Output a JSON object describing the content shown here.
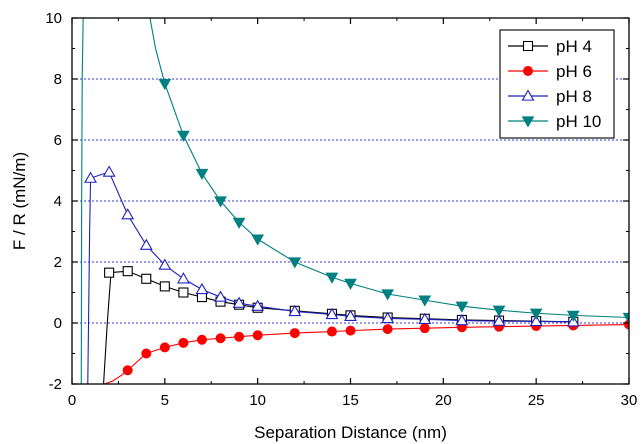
{
  "chart_data": {
    "type": "line",
    "title": "",
    "xlabel": "Separation Distance (nm)",
    "ylabel": "F / R (mN/m)",
    "xlim": [
      0,
      30
    ],
    "ylim": [
      -2,
      10
    ],
    "xticks": [
      0,
      5,
      10,
      15,
      20,
      25,
      30
    ],
    "yticks": [
      -2,
      0,
      2,
      4,
      6,
      8,
      10
    ],
    "grid": "dotted horizontal lines at y = 0, 2, 4, 6, 8",
    "legend_position": "top-right",
    "series": [
      {
        "name": "pH 4",
        "color": "#000000",
        "marker": "open-square",
        "curve": {
          "x": [
            1.7,
            1.9,
            2.1
          ],
          "y": [
            -2.0,
            0.0,
            1.65
          ]
        },
        "x": [
          2,
          3,
          4,
          5,
          6,
          7,
          8,
          9,
          10,
          12,
          14,
          15,
          17,
          19,
          21,
          23,
          25,
          27
        ],
        "y": [
          1.65,
          1.7,
          1.45,
          1.2,
          1.0,
          0.85,
          0.7,
          0.6,
          0.5,
          0.4,
          0.3,
          0.25,
          0.18,
          0.14,
          0.1,
          0.08,
          0.06,
          0.04
        ]
      },
      {
        "name": "pH 6",
        "color": "#ff0000",
        "marker": "filled-circle",
        "curve": {
          "x": [
            1.75,
            2.2,
            2.7,
            3.0
          ],
          "y": [
            -2.0,
            -1.9,
            -1.7,
            -1.55
          ]
        },
        "x": [
          3,
          4,
          5,
          6,
          7,
          8,
          9,
          10,
          12,
          14,
          15,
          17,
          19,
          21,
          23,
          25,
          27,
          30
        ],
        "y": [
          -1.55,
          -1.0,
          -0.8,
          -0.65,
          -0.55,
          -0.5,
          -0.45,
          -0.4,
          -0.33,
          -0.28,
          -0.25,
          -0.2,
          -0.17,
          -0.14,
          -0.12,
          -0.1,
          -0.08,
          -0.05
        ]
      },
      {
        "name": "pH 8",
        "color": "#2020c0",
        "marker": "open-triangle-up",
        "curve": {
          "x": [
            0.85,
            0.95,
            1.0
          ],
          "y": [
            -2.0,
            3.0,
            4.75
          ]
        },
        "x": [
          1,
          2,
          3,
          4,
          5,
          6,
          7,
          8,
          9,
          10,
          12,
          14,
          15,
          17,
          19,
          21,
          23,
          25,
          27
        ],
        "y": [
          4.75,
          4.95,
          3.55,
          2.55,
          1.9,
          1.45,
          1.1,
          0.85,
          0.65,
          0.55,
          0.38,
          0.28,
          0.22,
          0.15,
          0.12,
          0.08,
          0.06,
          0.05,
          0.04
        ]
      },
      {
        "name": "pH 10",
        "color": "#008080",
        "marker": "filled-triangle-down",
        "curve": {
          "x": [
            0.5,
            0.52,
            0.55,
            0.6
          ],
          "y": [
            -2.0,
            4.0,
            8.0,
            10.0
          ]
        },
        "x": [
          5,
          6,
          7,
          8,
          9,
          10,
          12,
          14,
          15,
          17,
          19,
          21,
          23,
          25,
          27,
          30
        ],
        "y": [
          7.85,
          6.15,
          4.9,
          4.0,
          3.3,
          2.75,
          2.0,
          1.5,
          1.3,
          0.95,
          0.75,
          0.55,
          0.42,
          0.32,
          0.25,
          0.18
        ]
      }
    ],
    "pH10_extension": {
      "x": [
        4.2,
        4.5,
        5.0
      ],
      "y": [
        10.0,
        9.0,
        7.85
      ]
    }
  }
}
